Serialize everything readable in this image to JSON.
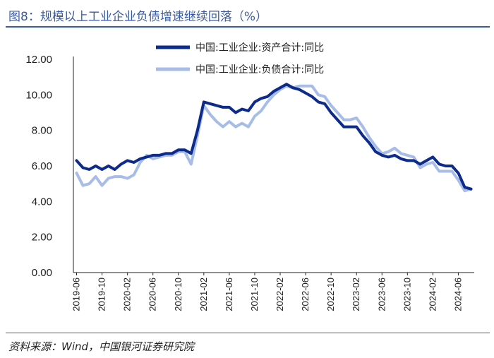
{
  "figure": {
    "title": "图8：规模以上工业企业负债增速继续回落（%）",
    "source": "资料来源：Wind，中国银河证券研究院"
  },
  "colors": {
    "series_1": "#0d2b8a",
    "series_2": "#a7bce6",
    "accent": "#3a5ba0"
  },
  "chart_data": {
    "type": "line",
    "title": "",
    "xlabel": "",
    "ylabel": "",
    "ylim": [
      0,
      12
    ],
    "yticks": [
      "0.00",
      "2.00",
      "4.00",
      "6.00",
      "8.00",
      "10.00",
      "12.00"
    ],
    "legend_position": "top-center",
    "grid": false,
    "x": [
      "2019-06",
      "2019-07",
      "2019-08",
      "2019-09",
      "2019-10",
      "2019-11",
      "2019-12",
      "2020-01",
      "2020-02",
      "2020-03",
      "2020-04",
      "2020-05",
      "2020-06",
      "2020-07",
      "2020-08",
      "2020-09",
      "2020-10",
      "2020-11",
      "2020-12",
      "2021-01",
      "2021-02",
      "2021-03",
      "2021-04",
      "2021-05",
      "2021-06",
      "2021-07",
      "2021-08",
      "2021-09",
      "2021-10",
      "2021-11",
      "2021-12",
      "2022-01",
      "2022-02",
      "2022-03",
      "2022-04",
      "2022-05",
      "2022-06",
      "2022-07",
      "2022-08",
      "2022-09",
      "2022-10",
      "2022-11",
      "2022-12",
      "2023-01",
      "2023-02",
      "2023-03",
      "2023-04",
      "2023-05",
      "2023-06",
      "2023-07",
      "2023-08",
      "2023-09",
      "2023-10",
      "2023-11",
      "2023-12",
      "2024-01",
      "2024-02",
      "2024-03",
      "2024-04",
      "2024-05",
      "2024-06",
      "2024-07",
      "2024-08"
    ],
    "x_tick_labels": [
      "2019-06",
      "2019-10",
      "2020-02",
      "2020-06",
      "2020-10",
      "2021-02",
      "2021-06",
      "2021-10",
      "2022-02",
      "2022-06",
      "2022-10",
      "2023-02",
      "2023-06",
      "2023-10",
      "2024-02",
      "2024-06"
    ],
    "series": [
      {
        "name": "中国:工业企业:资产合计:同比",
        "values": [
          6.3,
          5.9,
          5.8,
          6.0,
          5.8,
          6.0,
          5.8,
          6.1,
          6.3,
          6.2,
          6.4,
          6.5,
          6.6,
          6.6,
          6.7,
          6.7,
          6.9,
          6.9,
          6.7,
          8.0,
          9.6,
          9.5,
          9.4,
          9.3,
          9.3,
          9.0,
          9.2,
          9.1,
          9.6,
          9.8,
          9.9,
          10.2,
          10.4,
          10.6,
          10.4,
          10.3,
          10.1,
          9.9,
          9.6,
          9.5,
          9.0,
          8.6,
          8.2,
          8.2,
          8.2,
          7.7,
          7.3,
          6.8,
          6.6,
          6.5,
          6.6,
          6.4,
          6.3,
          6.3,
          6.1,
          6.3,
          6.5,
          6.1,
          6.0,
          6.0,
          5.6,
          4.8,
          4.7
        ]
      },
      {
        "name": "中国:工业企业:负债合计:同比",
        "values": [
          5.6,
          4.9,
          5.0,
          5.4,
          4.9,
          5.3,
          5.4,
          5.4,
          5.3,
          5.5,
          6.2,
          6.6,
          6.4,
          6.5,
          6.6,
          6.6,
          6.8,
          6.8,
          6.1,
          7.7,
          9.4,
          8.9,
          8.5,
          8.2,
          8.5,
          8.2,
          8.4,
          8.2,
          8.8,
          9.1,
          9.6,
          10.0,
          10.3,
          10.5,
          10.4,
          10.5,
          10.5,
          10.5,
          10.0,
          9.9,
          9.4,
          9.0,
          8.6,
          8.6,
          8.7,
          8.2,
          7.6,
          7.1,
          6.7,
          6.8,
          7.0,
          6.7,
          6.6,
          6.5,
          5.9,
          6.1,
          6.2,
          5.7,
          5.7,
          5.7,
          5.2,
          4.6,
          4.7
        ]
      }
    ]
  }
}
